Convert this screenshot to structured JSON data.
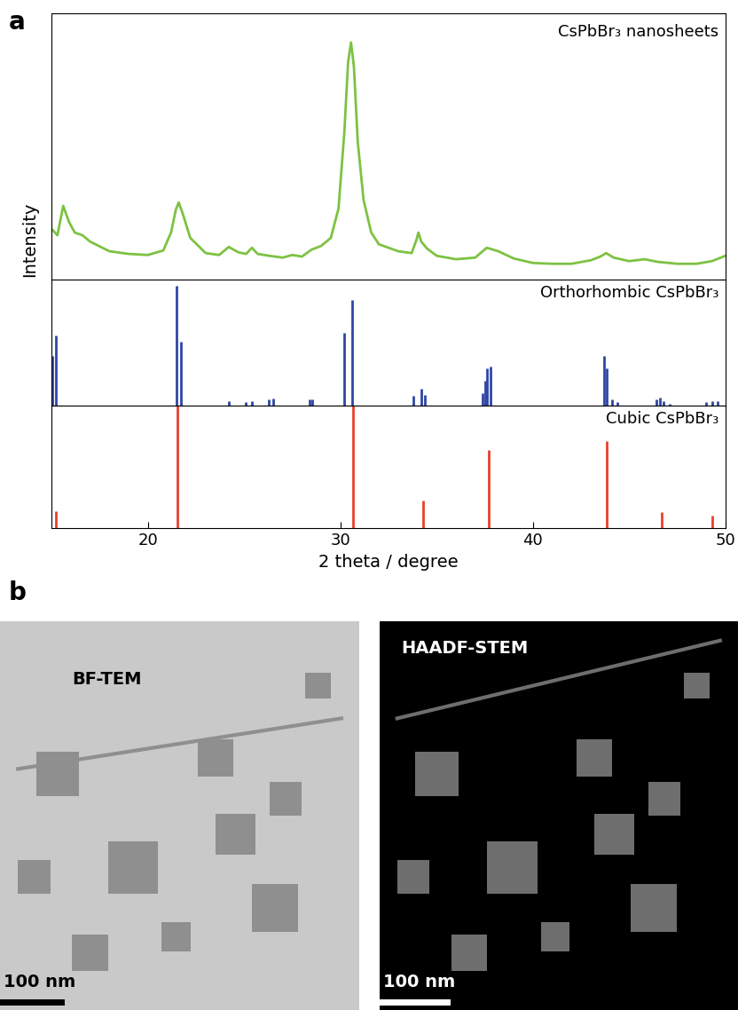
{
  "panel_labels": [
    "a",
    "b"
  ],
  "chart_data": [
    {
      "type": "line",
      "title": "CsPbBr₃ nanosheets",
      "y_label": "Intensity",
      "color": "#7dc242",
      "x": [
        15.0,
        15.3,
        15.6,
        15.9,
        16.2,
        16.6,
        17.0,
        18.0,
        19.0,
        20.0,
        20.8,
        21.2,
        21.45,
        21.6,
        21.8,
        22.2,
        23.0,
        23.7,
        24.2,
        24.7,
        25.1,
        25.4,
        25.7,
        26.3,
        27.0,
        27.5,
        28.0,
        28.5,
        29.0,
        29.5,
        29.9,
        30.2,
        30.4,
        30.55,
        30.7,
        30.9,
        31.2,
        31.6,
        32.0,
        33.0,
        33.7,
        33.95,
        34.05,
        34.2,
        34.5,
        35.0,
        36.0,
        37.0,
        37.6,
        38.2,
        39.0,
        40.0,
        41.0,
        42.0,
        43.0,
        43.5,
        43.8,
        44.2,
        45.0,
        45.8,
        46.5,
        47.5,
        48.5,
        49.3,
        50.0
      ],
      "values": [
        19.0,
        16.7,
        27.7,
        21.7,
        17.7,
        16.7,
        14.3,
        10.7,
        9.7,
        9.3,
        11.0,
        17.7,
        26.3,
        29.0,
        25.0,
        15.7,
        10.0,
        9.3,
        12.3,
        10.3,
        9.7,
        12.0,
        9.7,
        9.0,
        8.3,
        9.3,
        8.7,
        11.3,
        12.7,
        15.7,
        26.7,
        55.0,
        81.7,
        89.0,
        80.0,
        51.7,
        30.0,
        17.7,
        13.3,
        10.7,
        10.0,
        15.0,
        17.7,
        14.3,
        11.7,
        9.0,
        7.7,
        8.3,
        12.0,
        10.7,
        8.0,
        6.3,
        6.0,
        6.0,
        7.3,
        8.7,
        10.0,
        8.3,
        7.0,
        7.7,
        6.7,
        6.0,
        6.0,
        7.0,
        9.0
      ],
      "xlim": [
        15,
        50
      ],
      "ylim": [
        0,
        100
      ],
      "tick_labels": false
    },
    {
      "type": "stem",
      "title": "Orthorhombic CsPbBr₃",
      "color": "#2f46a6",
      "x": [
        15.05,
        15.2,
        21.5,
        21.7,
        24.2,
        25.1,
        25.4,
        26.3,
        26.5,
        28.4,
        28.55,
        30.2,
        30.6,
        33.8,
        34.2,
        34.4,
        37.4,
        37.5,
        37.6,
        37.8,
        43.7,
        43.85,
        44.1,
        44.4,
        46.4,
        46.6,
        46.8,
        47.1,
        49.0,
        49.3,
        49.6
      ],
      "values": [
        40,
        56,
        95,
        51,
        4,
        3,
        4,
        5,
        6,
        5,
        5,
        58,
        84,
        8,
        14,
        9,
        10,
        20,
        30,
        31,
        40,
        30,
        5,
        3,
        5,
        7,
        4,
        2,
        3,
        4,
        4
      ],
      "xlim": [
        15,
        50
      ],
      "ylim": [
        0,
        100
      ],
      "tick_labels": false
    },
    {
      "type": "stem",
      "title": "Cubic CsPbBr₃",
      "x_label": "2 theta / degree",
      "color": "#e8412c",
      "x": [
        15.2,
        21.55,
        30.65,
        34.3,
        37.7,
        43.85,
        46.7,
        49.3
      ],
      "values": [
        14,
        100,
        100,
        23,
        64,
        71,
        13,
        10
      ],
      "xlim": [
        15,
        50
      ],
      "ylim": [
        0,
        100
      ],
      "xticks": [
        20,
        30,
        40,
        50
      ],
      "tick_labels": "x"
    }
  ],
  "images": [
    {
      "title": "BF-TEM",
      "scale_bar": "100 nm"
    },
    {
      "title": "HAADF-STEM",
      "scale_bar": "100 nm"
    }
  ]
}
